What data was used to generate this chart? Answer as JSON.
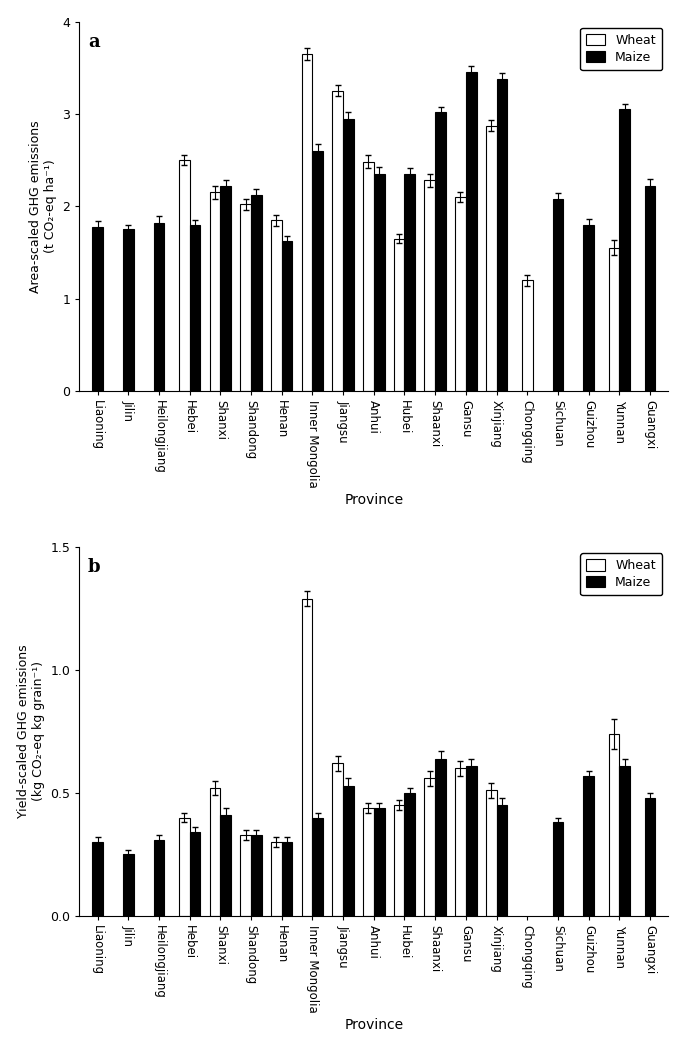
{
  "provinces": [
    "Liaoning",
    "Jilin",
    "Heilongjiang",
    "Hebei",
    "Shanxi",
    "Shandong",
    "Henan",
    "Inner Mongolia",
    "Jiangsu",
    "Anhui",
    "Hubei",
    "Shaanxi",
    "Gansu",
    "Xinjiang",
    "Chongqing",
    "Sichuan",
    "Guizhou",
    "Yunnan",
    "Guangxi"
  ],
  "panel_a": {
    "wheat": [
      null,
      null,
      null,
      2.5,
      2.15,
      2.02,
      1.85,
      3.65,
      3.25,
      2.48,
      1.65,
      2.28,
      2.1,
      2.87,
      1.2,
      null,
      null,
      1.55,
      null
    ],
    "wheat_err": [
      null,
      null,
      null,
      0.05,
      0.07,
      0.06,
      0.06,
      0.06,
      0.06,
      0.07,
      0.05,
      0.07,
      0.05,
      0.06,
      0.06,
      null,
      null,
      0.08,
      null
    ],
    "maize": [
      1.77,
      1.75,
      1.82,
      1.8,
      2.22,
      2.12,
      1.62,
      2.6,
      2.95,
      2.35,
      2.35,
      3.02,
      3.45,
      3.38,
      null,
      2.08,
      1.8,
      3.05,
      2.22
    ],
    "maize_err": [
      0.07,
      0.05,
      0.07,
      0.05,
      0.06,
      0.07,
      0.06,
      0.07,
      0.07,
      0.07,
      0.06,
      0.06,
      0.07,
      0.06,
      null,
      0.06,
      0.06,
      0.06,
      0.07
    ],
    "ylabel": "Area-scaled GHG emissions\n(t CO₂-eq ha⁻¹)",
    "ylim": [
      0,
      4
    ],
    "yticks": [
      0,
      1,
      2,
      3,
      4
    ],
    "panel_label": "a"
  },
  "panel_b": {
    "wheat": [
      null,
      null,
      null,
      0.4,
      0.52,
      0.33,
      0.3,
      1.29,
      0.62,
      0.44,
      0.45,
      0.56,
      0.6,
      0.51,
      null,
      null,
      null,
      0.74,
      null
    ],
    "wheat_err": [
      null,
      null,
      null,
      0.02,
      0.03,
      0.02,
      0.02,
      0.03,
      0.03,
      0.02,
      0.02,
      0.03,
      0.03,
      0.03,
      null,
      null,
      null,
      0.06,
      null
    ],
    "maize": [
      0.3,
      0.25,
      0.31,
      0.34,
      0.41,
      0.33,
      0.3,
      0.4,
      0.53,
      0.44,
      0.5,
      0.64,
      0.61,
      0.45,
      null,
      0.38,
      0.57,
      0.61,
      0.48
    ],
    "maize_err": [
      0.02,
      0.02,
      0.02,
      0.02,
      0.03,
      0.02,
      0.02,
      0.02,
      0.03,
      0.02,
      0.02,
      0.03,
      0.03,
      0.03,
      null,
      0.02,
      0.02,
      0.03,
      0.02
    ],
    "ylabel": "Yield-scaled GHG emissions\n(kg CO₂-eq kg grain⁻¹)",
    "ylim": [
      0,
      1.5
    ],
    "yticks": [
      0,
      0.5,
      1.0,
      1.5
    ],
    "panel_label": "b"
  },
  "wheat_color": "white",
  "maize_color": "black",
  "bar_edge_color": "black",
  "bar_width": 0.35,
  "fig_width": 6.85,
  "fig_height": 10.49,
  "xlabel": "Province",
  "legend_wheat": "Wheat",
  "legend_maize": "Maize"
}
